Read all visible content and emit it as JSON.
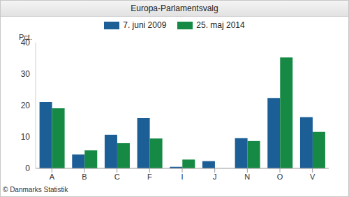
{
  "chart_data": {
    "type": "bar",
    "title": "Europa-Parlamentsvalg",
    "y_label": "Pct.",
    "source": "© Danmarks Statistik",
    "categories": [
      "A",
      "B",
      "C",
      "F",
      "I",
      "J",
      "N",
      "O",
      "V"
    ],
    "series": [
      {
        "name": "7. juni 2009",
        "color": "#1c5f97",
        "values": [
          21.1,
          4.4,
          10.7,
          16.0,
          0.5,
          2.3,
          9.6,
          22.4,
          16.3
        ]
      },
      {
        "name": "25. maj 2014",
        "color": "#168a45",
        "values": [
          19.1,
          5.7,
          8.0,
          9.5,
          2.8,
          null,
          8.7,
          35.3,
          11.6
        ]
      }
    ],
    "ylim": [
      0,
      40
    ],
    "yticks": [
      0,
      10,
      20,
      30,
      40
    ],
    "grid": false,
    "legend": "top"
  }
}
